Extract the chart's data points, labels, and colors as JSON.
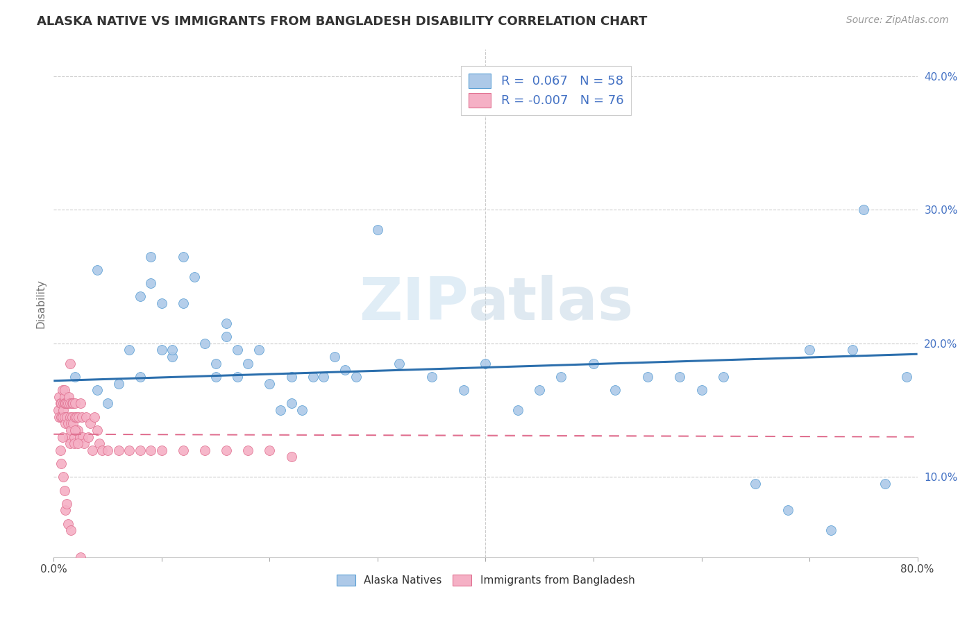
{
  "title": "ALASKA NATIVE VS IMMIGRANTS FROM BANGLADESH DISABILITY CORRELATION CHART",
  "source": "Source: ZipAtlas.com",
  "ylabel": "Disability",
  "watermark_zip": "ZIP",
  "watermark_atlas": "atlas",
  "xlim": [
    0.0,
    0.8
  ],
  "ylim": [
    0.04,
    0.42
  ],
  "xtick_positions": [
    0.0,
    0.1,
    0.2,
    0.3,
    0.4,
    0.5,
    0.6,
    0.7,
    0.8
  ],
  "xticklabels": [
    "0.0%",
    "",
    "",
    "",
    "",
    "",
    "",
    "",
    "80.0%"
  ],
  "yticks_right": [
    0.1,
    0.2,
    0.3,
    0.4
  ],
  "ytick_right_labels": [
    "10.0%",
    "20.0%",
    "30.0%",
    "40.0%"
  ],
  "blue_R": "0.067",
  "blue_N": "58",
  "pink_R": "-0.007",
  "pink_N": "76",
  "blue_color": "#adc9e8",
  "pink_color": "#f5b0c5",
  "blue_edge_color": "#5a9fd4",
  "pink_edge_color": "#e07090",
  "blue_line_color": "#2c6fad",
  "pink_line_color": "#e07090",
  "legend_label_blue": "Alaska Natives",
  "legend_label_pink": "Immigrants from Bangladesh",
  "blue_line_y0": 0.172,
  "blue_line_y1": 0.192,
  "pink_line_y0": 0.132,
  "pink_line_y1": 0.13,
  "blue_scatter_x": [
    0.02,
    0.04,
    0.04,
    0.05,
    0.06,
    0.07,
    0.08,
    0.08,
    0.09,
    0.09,
    0.1,
    0.1,
    0.11,
    0.11,
    0.12,
    0.12,
    0.13,
    0.14,
    0.15,
    0.15,
    0.16,
    0.16,
    0.17,
    0.17,
    0.18,
    0.19,
    0.2,
    0.21,
    0.22,
    0.22,
    0.23,
    0.24,
    0.25,
    0.26,
    0.27,
    0.28,
    0.3,
    0.32,
    0.35,
    0.38,
    0.4,
    0.43,
    0.45,
    0.47,
    0.5,
    0.52,
    0.55,
    0.58,
    0.6,
    0.62,
    0.65,
    0.68,
    0.7,
    0.72,
    0.74,
    0.75,
    0.77,
    0.79
  ],
  "blue_scatter_y": [
    0.175,
    0.165,
    0.255,
    0.155,
    0.17,
    0.195,
    0.175,
    0.235,
    0.265,
    0.245,
    0.23,
    0.195,
    0.19,
    0.195,
    0.23,
    0.265,
    0.25,
    0.2,
    0.185,
    0.175,
    0.215,
    0.205,
    0.175,
    0.195,
    0.185,
    0.195,
    0.17,
    0.15,
    0.175,
    0.155,
    0.15,
    0.175,
    0.175,
    0.19,
    0.18,
    0.175,
    0.285,
    0.185,
    0.175,
    0.165,
    0.185,
    0.15,
    0.165,
    0.175,
    0.185,
    0.165,
    0.175,
    0.175,
    0.165,
    0.175,
    0.095,
    0.075,
    0.195,
    0.06,
    0.195,
    0.3,
    0.095,
    0.175
  ],
  "pink_scatter_x": [
    0.004,
    0.005,
    0.005,
    0.006,
    0.007,
    0.007,
    0.008,
    0.008,
    0.009,
    0.009,
    0.01,
    0.01,
    0.01,
    0.01,
    0.011,
    0.011,
    0.012,
    0.012,
    0.013,
    0.013,
    0.014,
    0.014,
    0.015,
    0.015,
    0.015,
    0.016,
    0.016,
    0.017,
    0.017,
    0.018,
    0.018,
    0.019,
    0.019,
    0.02,
    0.02,
    0.021,
    0.022,
    0.023,
    0.024,
    0.025,
    0.026,
    0.027,
    0.028,
    0.03,
    0.032,
    0.034,
    0.036,
    0.038,
    0.04,
    0.042,
    0.045,
    0.05,
    0.06,
    0.07,
    0.08,
    0.09,
    0.1,
    0.12,
    0.14,
    0.16,
    0.18,
    0.2,
    0.22,
    0.01,
    0.011,
    0.013,
    0.015,
    0.02,
    0.022,
    0.008,
    0.006,
    0.007,
    0.009,
    0.012,
    0.016,
    0.025
  ],
  "pink_scatter_y": [
    0.15,
    0.16,
    0.145,
    0.155,
    0.155,
    0.145,
    0.165,
    0.145,
    0.155,
    0.15,
    0.16,
    0.165,
    0.155,
    0.145,
    0.14,
    0.155,
    0.155,
    0.145,
    0.155,
    0.14,
    0.16,
    0.13,
    0.145,
    0.155,
    0.125,
    0.14,
    0.135,
    0.155,
    0.145,
    0.155,
    0.14,
    0.13,
    0.125,
    0.155,
    0.145,
    0.145,
    0.135,
    0.145,
    0.13,
    0.155,
    0.145,
    0.13,
    0.125,
    0.145,
    0.13,
    0.14,
    0.12,
    0.145,
    0.135,
    0.125,
    0.12,
    0.12,
    0.12,
    0.12,
    0.12,
    0.12,
    0.12,
    0.12,
    0.12,
    0.12,
    0.12,
    0.12,
    0.115,
    0.09,
    0.075,
    0.065,
    0.185,
    0.135,
    0.125,
    0.13,
    0.12,
    0.11,
    0.1,
    0.08,
    0.06,
    0.04
  ],
  "background_color": "#ffffff",
  "grid_color": "#cccccc",
  "title_color": "#333333",
  "axis_label_color": "#777777",
  "right_tick_color": "#4472c4",
  "legend_text_color": "#4472c4"
}
